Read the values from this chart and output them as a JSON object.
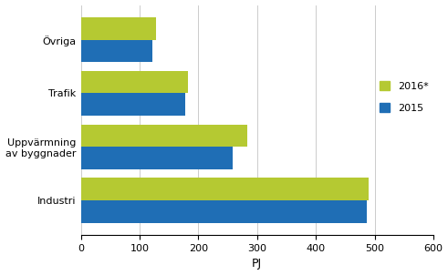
{
  "categories": [
    "Industri",
    "Uppvärmning\nav byggnader",
    "Trafik",
    "Övriga"
  ],
  "values_2016": [
    490,
    283,
    183,
    128
  ],
  "values_2015": [
    487,
    258,
    178,
    122
  ],
  "color_2016": "#b5c932",
  "color_2015": "#1f6eb5",
  "xlabel": "PJ",
  "legend_2016": "2016*",
  "legend_2015": "2015",
  "xlim": [
    0,
    600
  ],
  "xticks": [
    0,
    100,
    200,
    300,
    400,
    500,
    600
  ],
  "background_color": "#ffffff",
  "bar_height": 0.42,
  "grid_color": "#cccccc"
}
